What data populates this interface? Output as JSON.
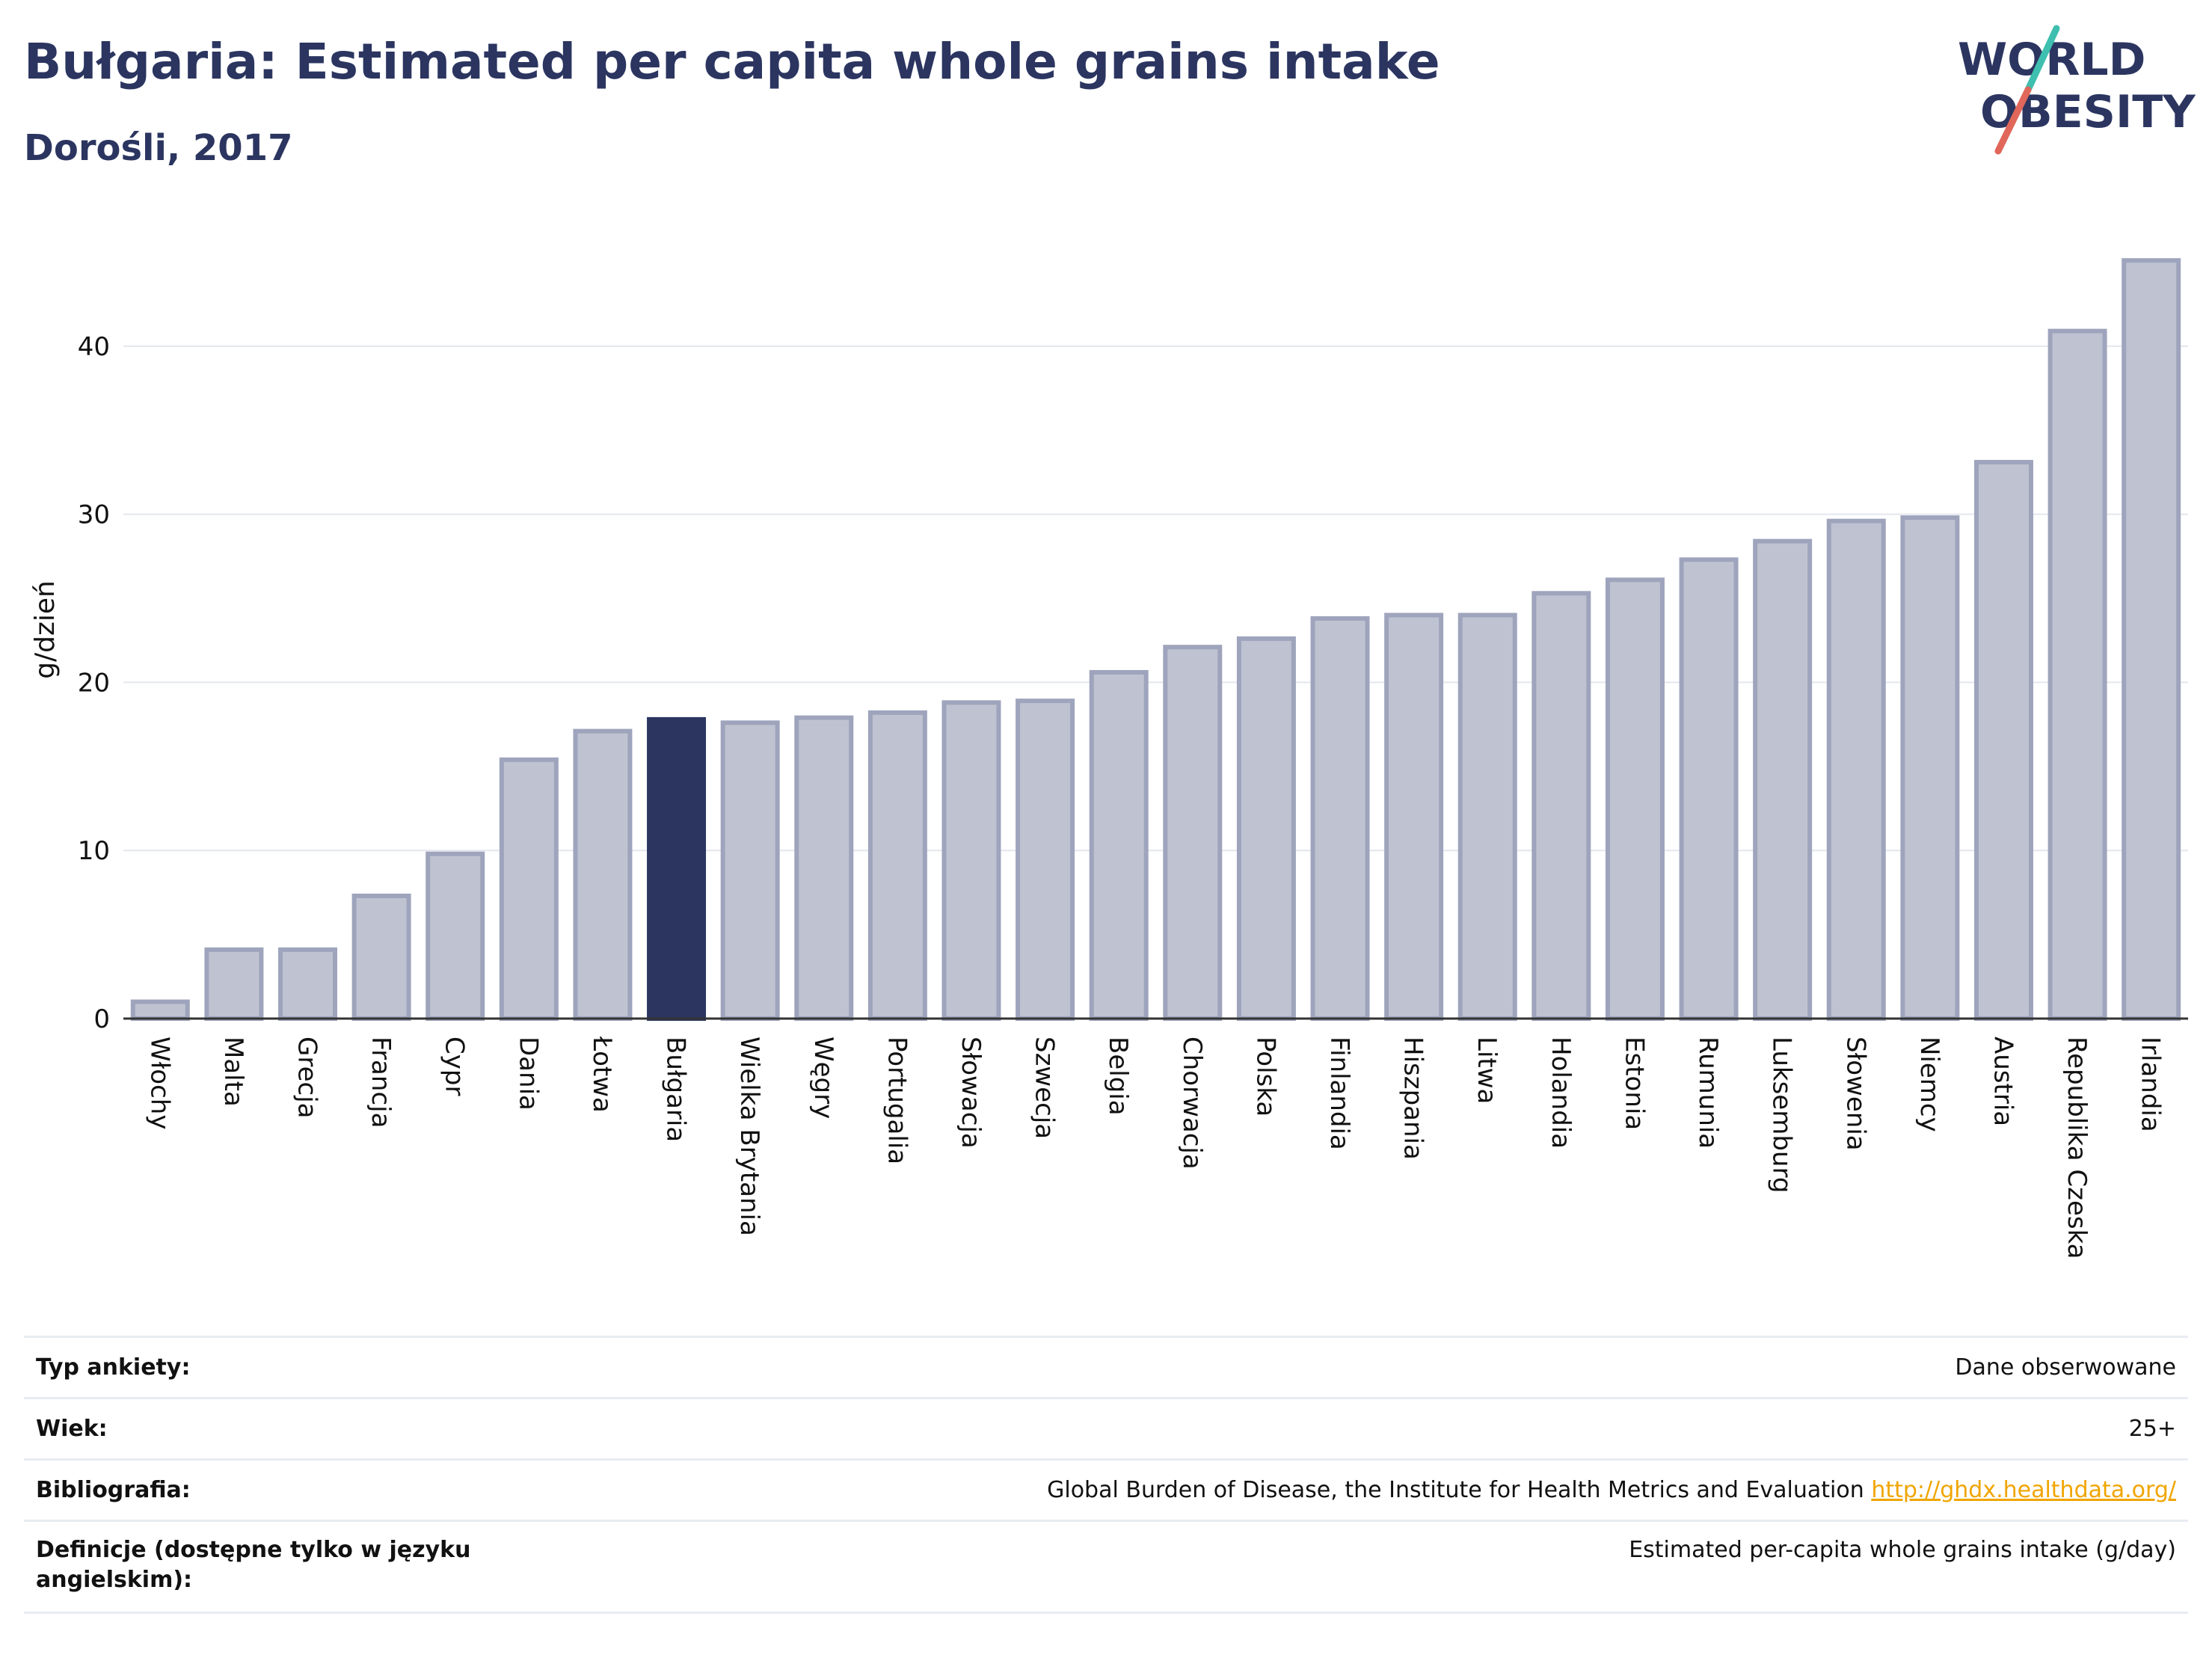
{
  "header": {
    "title": "Bułgaria: Estimated per capita whole grains intake",
    "subtitle": "Dorośli, 2017"
  },
  "logo": {
    "line1": "WORLD",
    "line2": "OBESITY",
    "colors": {
      "text": "#2b3560",
      "slash_teal": "#3fbfb0",
      "slash_red": "#e0675a"
    }
  },
  "chart_data": {
    "type": "bar",
    "ylabel": "g/dzień",
    "xlabel": "",
    "ylim": [
      0,
      46
    ],
    "yticks": [
      0,
      10,
      20,
      30,
      40
    ],
    "grid": true,
    "highlight": "Bułgaria",
    "colors": {
      "bar": "#bfc3d1",
      "bar_border": "#9ea4bc",
      "highlight": "#2b3560"
    },
    "categories": [
      "Włochy",
      "Malta",
      "Grecja",
      "Francja",
      "Cypr",
      "Dania",
      "Łotwa",
      "Bułgaria",
      "Wielka Brytania",
      "Węgry",
      "Portugalia",
      "Słowacja",
      "Szwecja",
      "Belgia",
      "Chorwacja",
      "Polska",
      "Finlandia",
      "Hiszpania",
      "Litwa",
      "Holandia",
      "Estonia",
      "Rumunia",
      "Luksemburg",
      "Słowenia",
      "Niemcy",
      "Austria",
      "Republika Czeska",
      "Irlandia"
    ],
    "values": [
      1.0,
      4.1,
      4.1,
      7.3,
      9.8,
      15.4,
      17.1,
      17.8,
      17.6,
      17.9,
      18.2,
      18.8,
      18.9,
      20.6,
      22.1,
      22.6,
      23.8,
      24.0,
      24.0,
      25.3,
      26.1,
      27.3,
      28.4,
      29.6,
      29.8,
      33.1,
      40.9,
      45.1
    ]
  },
  "meta": {
    "rows": [
      {
        "label": "Typ ankiety:",
        "value": "Dane obserwowane"
      },
      {
        "label": "Wiek:",
        "value": "25+"
      },
      {
        "label": "Bibliografia:",
        "value": "Global Burden of Disease, the Institute for Health Metrics and Evaluation",
        "link": "http://ghdx.healthdata.org/"
      },
      {
        "label": "Definicje (dostępne tylko w języku angielskim):",
        "value": "Estimated per-capita whole grains intake (g/day)"
      }
    ]
  }
}
